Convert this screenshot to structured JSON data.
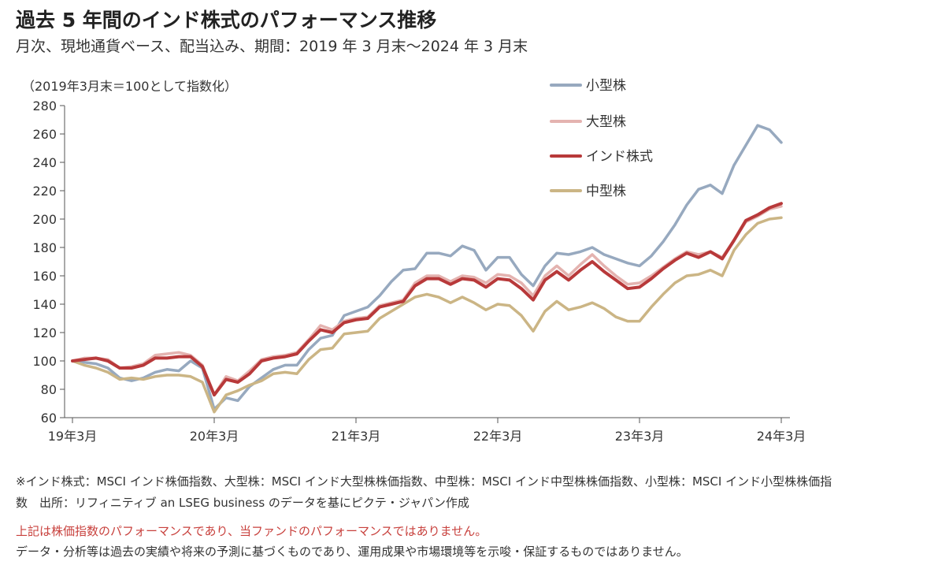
{
  "header": {
    "title": "過去 5 年間のインド株式のパフォーマンス推移",
    "subtitle": "月次、現地通貨ベース、配当込み、期間：2019 年 3 月末～2024 年 3 月末"
  },
  "chart_data": {
    "type": "line",
    "unit_label": "（2019年3月末＝100として指数化）",
    "ylim": [
      60,
      280
    ],
    "yticks": [
      60,
      80,
      100,
      120,
      140,
      160,
      180,
      200,
      220,
      240,
      260,
      280
    ],
    "xlim": [
      0,
      61
    ],
    "xticks": [
      {
        "pos": 0,
        "label": "19年3月"
      },
      {
        "pos": 12,
        "label": "20年3月"
      },
      {
        "pos": 24,
        "label": "21年3月"
      },
      {
        "pos": 36,
        "label": "22年3月"
      },
      {
        "pos": 48,
        "label": "23年3月"
      },
      {
        "pos": 60,
        "label": "24年3月"
      }
    ],
    "legend_position": "top-right",
    "grid": false,
    "series": [
      {
        "name": "小型株",
        "color": "#97a9bf",
        "values": [
          100,
          99,
          98,
          95,
          88,
          86,
          88,
          92,
          94,
          93,
          100,
          95,
          66,
          74,
          72,
          82,
          88,
          94,
          97,
          97,
          108,
          116,
          118,
          132,
          135,
          138,
          146,
          156,
          164,
          165,
          176,
          176,
          174,
          181,
          178,
          164,
          173,
          173,
          161,
          153,
          167,
          176,
          175,
          177,
          180,
          175,
          172,
          169,
          167,
          174,
          184,
          196,
          210,
          221,
          224,
          218,
          238,
          252,
          266,
          263,
          254
        ]
      },
      {
        "name": "大型株",
        "color": "#e4b3b0",
        "values": [
          100,
          102,
          102,
          101,
          95,
          96,
          98,
          104,
          105,
          106,
          104,
          97,
          76,
          89,
          86,
          93,
          101,
          103,
          104,
          106,
          115,
          125,
          122,
          128,
          130,
          131,
          139,
          141,
          143,
          155,
          160,
          160,
          156,
          160,
          159,
          155,
          161,
          160,
          155,
          146,
          160,
          167,
          160,
          168,
          175,
          167,
          160,
          154,
          155,
          160,
          166,
          172,
          177,
          175,
          177,
          173,
          185,
          198,
          202,
          207,
          209
        ]
      },
      {
        "name": "インド株式",
        "color": "#b8393a",
        "values": [
          100,
          101,
          102,
          100,
          95,
          95,
          97,
          102,
          102,
          103,
          103,
          96,
          76,
          87,
          85,
          91,
          100,
          102,
          103,
          105,
          114,
          122,
          120,
          127,
          129,
          130,
          138,
          140,
          142,
          153,
          158,
          158,
          154,
          158,
          157,
          152,
          158,
          157,
          151,
          143,
          157,
          163,
          157,
          164,
          170,
          163,
          157,
          151,
          152,
          158,
          165,
          171,
          176,
          173,
          177,
          172,
          185,
          199,
          203,
          208,
          211
        ]
      },
      {
        "name": "中型株",
        "color": "#cbb585",
        "values": [
          100,
          97,
          95,
          92,
          87,
          88,
          87,
          89,
          90,
          90,
          89,
          85,
          64,
          76,
          79,
          83,
          86,
          91,
          92,
          91,
          101,
          108,
          109,
          119,
          120,
          121,
          130,
          135,
          140,
          145,
          147,
          145,
          141,
          145,
          141,
          136,
          140,
          139,
          132,
          121,
          135,
          142,
          136,
          138,
          141,
          137,
          131,
          128,
          128,
          138,
          147,
          155,
          160,
          161,
          164,
          160,
          178,
          189,
          197,
          200,
          201
        ]
      }
    ]
  },
  "footnotes": {
    "line1": "※インド株式：MSCI インド株価指数、大型株：MSCI インド大型株株価指数、中型株：MSCI インド中型株株価指数、小型株：MSCI インド小型株株価指",
    "line2": "数　出所：リフィニティブ an LSEG business のデータを基にピクテ・ジャパン作成",
    "disclaimer_red": "上記は株価指数のパフォーマンスであり、当ファンドのパフォーマンスではありません。",
    "disclaimer": "データ・分析等は過去の実績や将来の予測に基づくものであり、運用成果や市場環境等を示唆・保証するものではありません。"
  }
}
